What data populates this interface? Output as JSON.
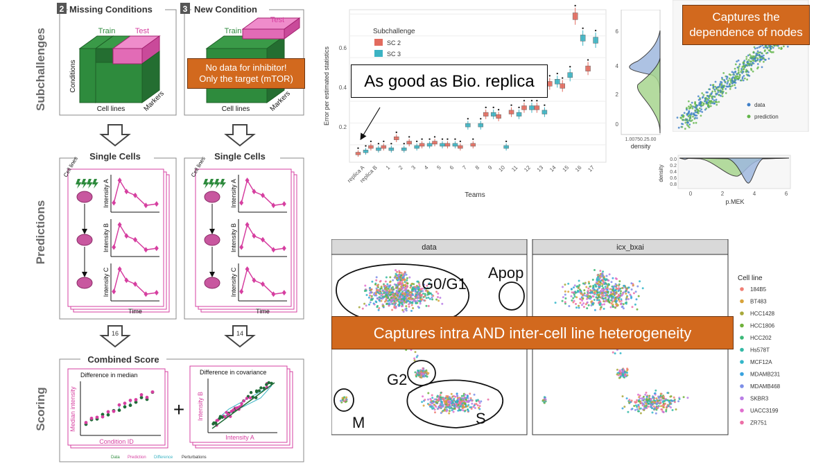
{
  "colors": {
    "train_green": "#2e8b3d",
    "test_magenta": "#d63fa0",
    "callout_orange": "#d2691e",
    "sc2_red": "#e26b5e",
    "sc3_teal": "#3bb3c3",
    "data_blue": "#3f7fc8",
    "prediction_green": "#62b54a"
  },
  "icons": [
    "down-arrow-icon",
    "perturbation-bolt-icon",
    "plus-icon"
  ],
  "left": {
    "side_labels": [
      "Subchallenges",
      "Predictions",
      "Scoring"
    ],
    "panel2_num": "2",
    "panel2_title": "Missing Conditions",
    "panel3_num": "3",
    "panel3_title": "New Condition",
    "train": "Train",
    "test": "Test",
    "conditions": "Conditions",
    "cell_lines": "Cell lines",
    "markers": "Markers",
    "single_cells": "Single Cells",
    "cell_lines_rot": "Cell lines",
    "intensity_a": "Intensity A",
    "intensity_b": "Intensity B",
    "intensity_c": "Intensity C",
    "time": "Time",
    "arrow_num_left": "16",
    "arrow_num_right": "14",
    "combined_score": "Combined Score",
    "diff_median": "Difference in median",
    "median_intensity": "Median intensity",
    "condition_id": "Condition ID",
    "diff_cov": "Difference in covariance",
    "intensity_b_axis": "Intensity B",
    "intensity_a_axis": "Intensity A",
    "plus": "+",
    "legend": [
      "Data",
      "Prediction",
      "Difference",
      "Perturbations"
    ]
  },
  "callouts": {
    "no_data": "No data for inhibitor!\nOnly the target (mTOR)",
    "bio_replica": "As good as Bio. replica",
    "dependence": "Captures the\ndependence of nodes",
    "heterogeneity": "Captures intra AND inter-cell line heterogeneity"
  },
  "boxplot": {
    "ylabel": "Error per estimated statistics",
    "xlabel": "Teams",
    "legend_title": "Subchallenge",
    "legend_sc2": "SC 2",
    "legend_sc3": "SC 3",
    "density_label": "density",
    "density_ticks_text": "1.00750.25.00",
    "right_ticks": [
      "6",
      "4",
      "2",
      "0"
    ],
    "yticks": [
      "0.2",
      "0.4",
      "0.6"
    ]
  },
  "scatter": {
    "legend": [
      "data",
      "prediction"
    ],
    "density_label": "density",
    "density_ticks": [
      "0.0",
      "0.2",
      "0.4",
      "0.6",
      "0.8"
    ],
    "xticks": [
      "0",
      "2",
      "4",
      "6"
    ],
    "xlabel": "p.MEK"
  },
  "umap": {
    "panel_left": "data",
    "panel_right": "icx_bxai",
    "labels": [
      "G0/G1",
      "Apop",
      "G2",
      "M",
      "S"
    ],
    "legend_title": "Cell line",
    "cell_lines": [
      "184B5",
      "BT483",
      "HCC1428",
      "HCC1806",
      "HCC202",
      "Hs578T",
      "MCF12A",
      "MDAMB231",
      "MDAMB468",
      "SKBR3",
      "UACC3199",
      "ZR751"
    ],
    "cell_line_colors": [
      "#f07f75",
      "#d8a33a",
      "#a7a83a",
      "#6fb13b",
      "#3cb878",
      "#34b9a6",
      "#33b6c9",
      "#3aa3df",
      "#7d8fe8",
      "#b97ee6",
      "#e06fcf",
      "#ec6fa6"
    ]
  },
  "chart_data": {
    "type": "box",
    "categories": [
      "replica A",
      "replica B",
      "1",
      "2",
      "3",
      "4",
      "5",
      "6",
      "7",
      "8",
      "9",
      "10",
      "11",
      "12",
      "13",
      "14",
      "15",
      "16",
      "17"
    ],
    "series": [
      {
        "name": "SC 2",
        "values": [
          0.06,
          0.09,
          0.09,
          0.13,
          0.11,
          0.1,
          0.11,
          0.1,
          0.09,
          0.1,
          0.24,
          0.23,
          0.25,
          0.27,
          0.27,
          0.38,
          0.37,
          0.69,
          0.45
        ]
      },
      {
        "name": "SC 3",
        "values": [
          0.07,
          0.08,
          0.08,
          0.08,
          0.09,
          0.1,
          0.1,
          0.1,
          0.19,
          0.19,
          0.24,
          0.09,
          0.24,
          0.27,
          0.25,
          0.39,
          0.42,
          0.59,
          0.58
        ]
      }
    ],
    "ylim": [
      0.02,
      0.72
    ]
  }
}
